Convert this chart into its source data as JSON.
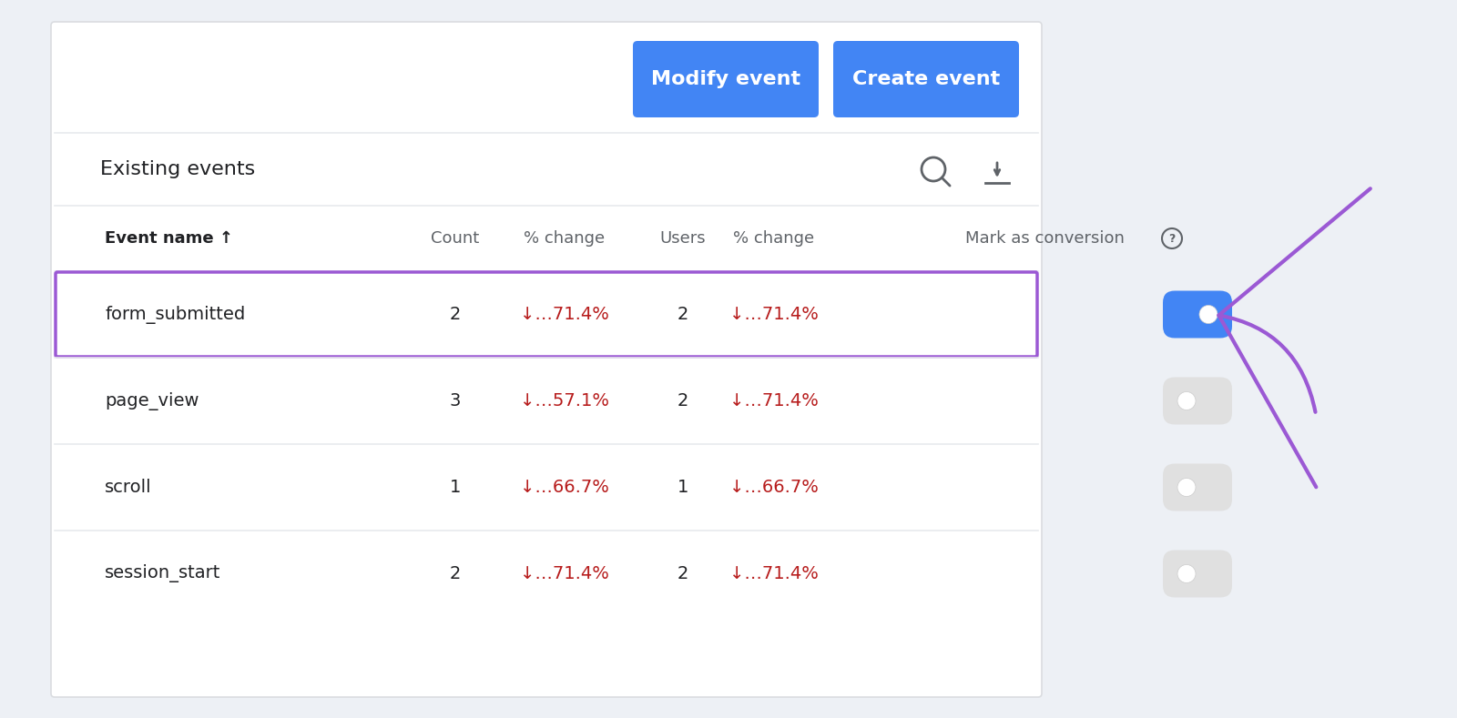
{
  "bg_color": "#edf0f5",
  "card_color": "#ffffff",
  "card_border_color": "#dadce0",
  "button_modify_color": "#4285f4",
  "button_create_color": "#4285f4",
  "button_text_color": "#ffffff",
  "button_modify_text": "Modify event",
  "button_create_text": "Create event",
  "existing_events_label": "Existing events",
  "header_row": [
    "Event name ↑",
    "Count",
    "% change",
    "Users",
    "% change",
    "Mark as conversion"
  ],
  "rows": [
    {
      "name": "form_submitted",
      "count": "2",
      "count_change": "↓…71.4%",
      "users": "2",
      "users_change": "↓…71.4%",
      "toggle": "on",
      "highlight": true
    },
    {
      "name": "page_view",
      "count": "3",
      "count_change": "↓…57.1%",
      "users": "2",
      "users_change": "↓…71.4%",
      "toggle": "off",
      "highlight": false
    },
    {
      "name": "scroll",
      "count": "1",
      "count_change": "↓…66.7%",
      "users": "1",
      "users_change": "↓…66.7%",
      "toggle": "off",
      "highlight": false
    },
    {
      "name": "session_start",
      "count": "2",
      "count_change": "↓…71.4%",
      "users": "2",
      "users_change": "↓…71.4%",
      "toggle": "off",
      "highlight": false
    }
  ],
  "highlight_border": "#9b59d4",
  "red_color": "#b71c1c",
  "toggle_on_color": "#4285f4",
  "toggle_off_bg": "#e0e0e0",
  "toggle_knob_color": "#ffffff",
  "arrow_color": "#9b59d4",
  "divider_color": "#e8eaed",
  "text_dark": "#202124",
  "text_gray": "#5f6368",
  "info_circle_color": "#5f6368"
}
